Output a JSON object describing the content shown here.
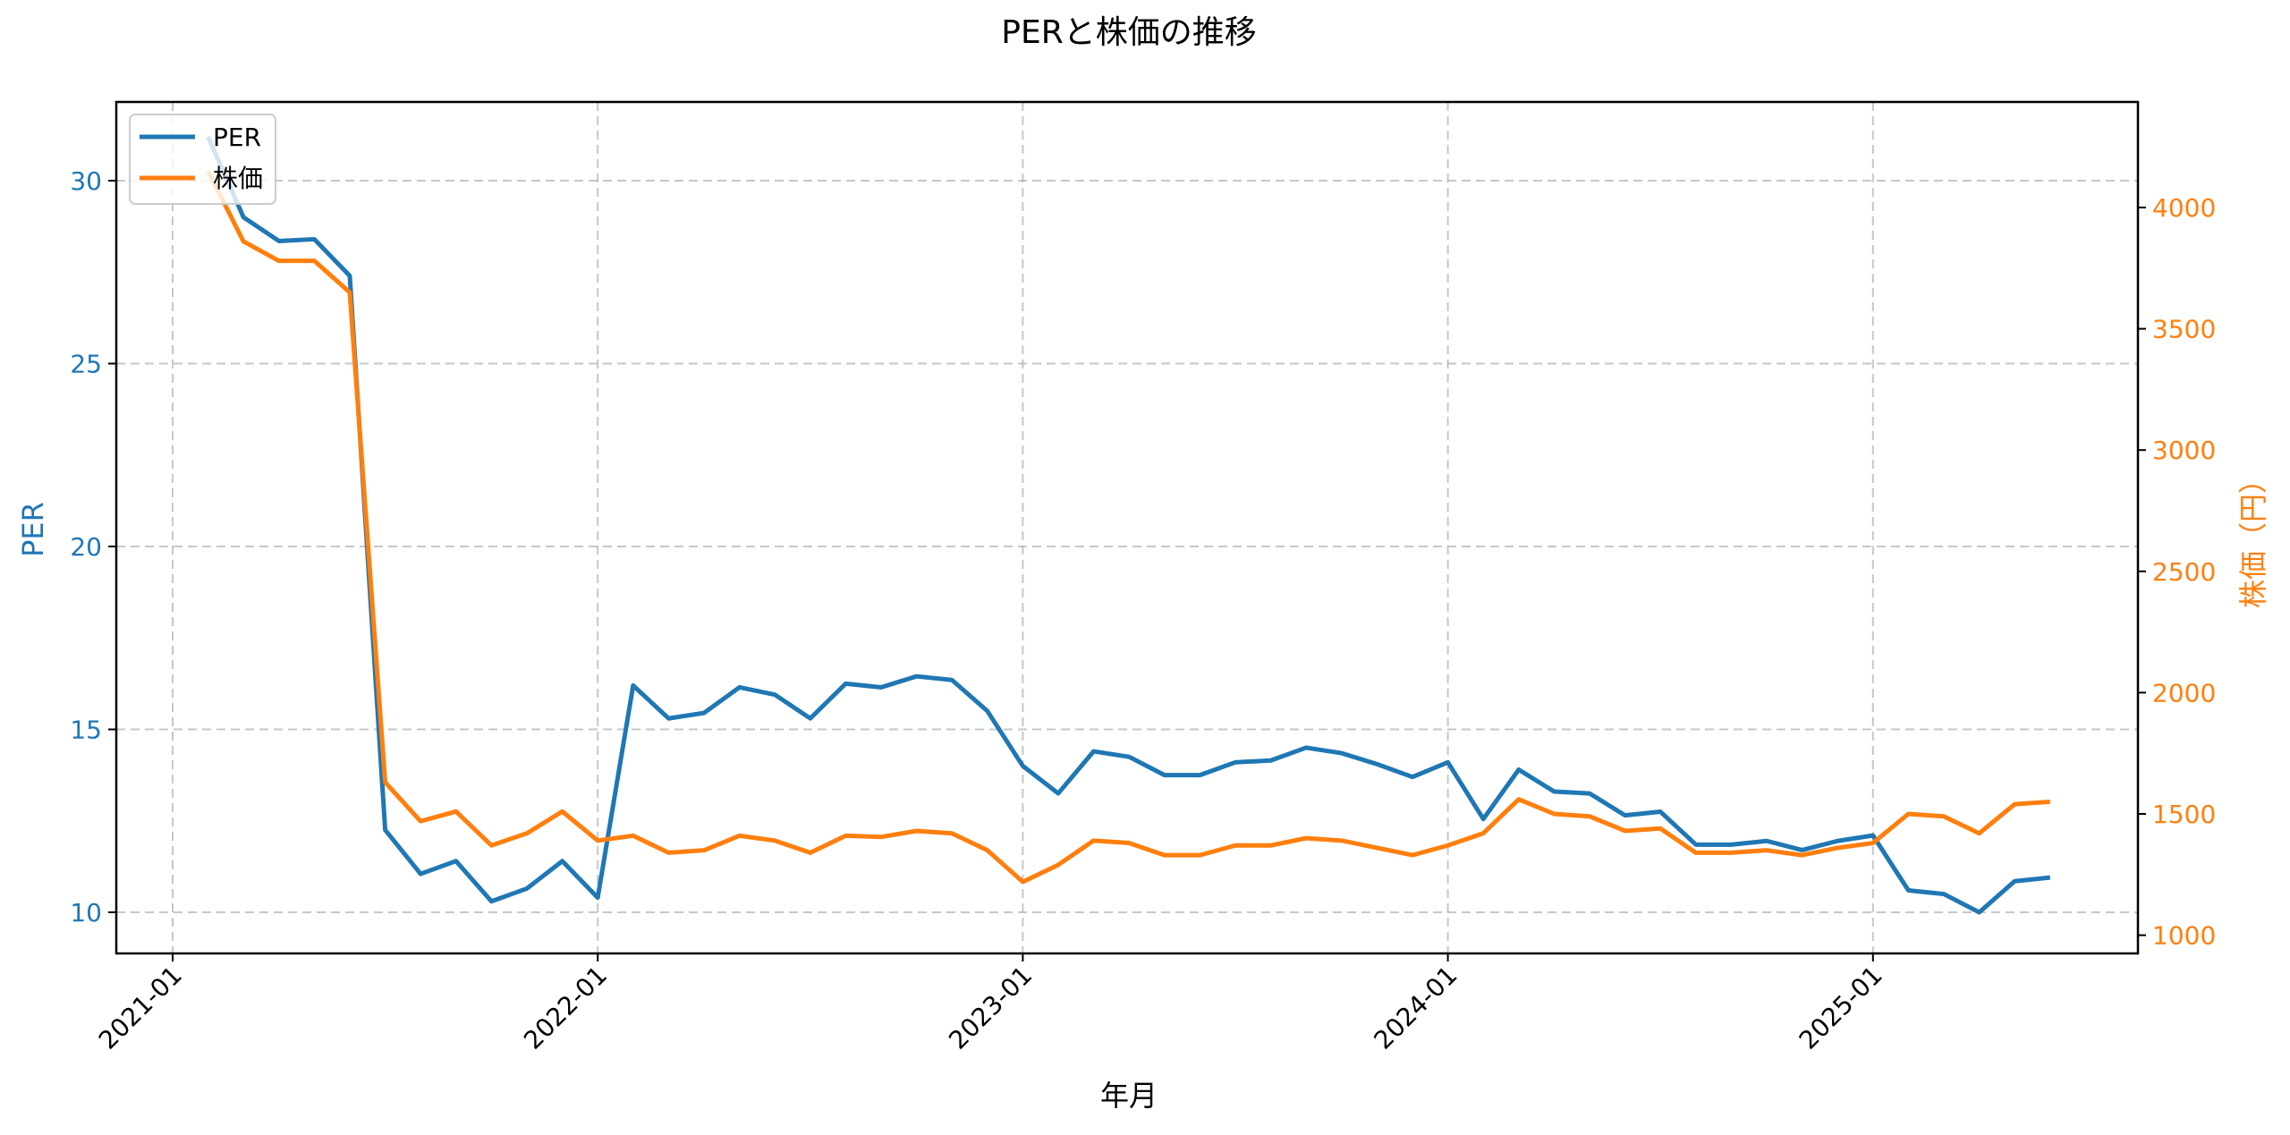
{
  "chart_data": {
    "type": "line",
    "title": "PERと株価の推移",
    "xlabel": "年月",
    "ylabel_left": "PER",
    "ylabel_right": "株価（円）",
    "ylim_left": [
      9.1,
      32.2
    ],
    "ylim_right": [
      950,
      4450
    ],
    "left_ticks": [
      10,
      15,
      20,
      25,
      30
    ],
    "right_ticks": [
      1000,
      1500,
      2000,
      2500,
      3000,
      3500,
      4000
    ],
    "x_ticks": [
      "2021-01",
      "2022-01",
      "2023-01",
      "2024-01",
      "2025-01"
    ],
    "grid": true,
    "legend_position": "upper left",
    "x": [
      "2021-02",
      "2021-03",
      "2021-04",
      "2021-05",
      "2021-06",
      "2021-07",
      "2021-08",
      "2021-09",
      "2021-10",
      "2021-11",
      "2021-12",
      "2022-01",
      "2022-02",
      "2022-03",
      "2022-04",
      "2022-05",
      "2022-06",
      "2022-07",
      "2022-08",
      "2022-09",
      "2022-10",
      "2022-11",
      "2022-12",
      "2023-01",
      "2023-02",
      "2023-03",
      "2023-04",
      "2023-05",
      "2023-06",
      "2023-07",
      "2023-08",
      "2023-09",
      "2023-10",
      "2023-11",
      "2023-12",
      "2024-01",
      "2024-02",
      "2024-03",
      "2024-04",
      "2024-05",
      "2024-06",
      "2024-07",
      "2024-08",
      "2024-09",
      "2024-10",
      "2024-11",
      "2024-12",
      "2025-01",
      "2025-02",
      "2025-03",
      "2025-04",
      "2025-05",
      "2025-06"
    ],
    "series": [
      {
        "name": "PER",
        "axis": "left",
        "color": "#1f77b4",
        "values": [
          31.2,
          29.0,
          28.35,
          28.4,
          27.4,
          12.25,
          11.05,
          11.4,
          10.3,
          10.65,
          11.4,
          10.4,
          16.2,
          15.3,
          15.45,
          16.15,
          15.95,
          15.3,
          16.25,
          16.15,
          16.45,
          16.35,
          15.5,
          14.0,
          13.25,
          14.4,
          14.25,
          13.75,
          13.75,
          14.1,
          14.15,
          14.5,
          14.35,
          14.05,
          13.7,
          14.1,
          12.55,
          13.9,
          13.3,
          13.25,
          12.65,
          12.75,
          11.85,
          11.85,
          11.95,
          11.7,
          11.95,
          12.1,
          10.6,
          10.5,
          10.0,
          10.85,
          10.95
        ]
      },
      {
        "name": "株価",
        "axis": "right",
        "color": "#ff7f0e",
        "values": [
          4150,
          3860,
          3780,
          3780,
          3650,
          1630,
          1470,
          1510,
          1370,
          1420,
          1510,
          1390,
          1410,
          1340,
          1350,
          1410,
          1390,
          1340,
          1410,
          1405,
          1430,
          1420,
          1350,
          1220,
          1290,
          1390,
          1380,
          1330,
          1330,
          1370,
          1370,
          1400,
          1390,
          1360,
          1330,
          1370,
          1420,
          1560,
          1500,
          1490,
          1430,
          1440,
          1340,
          1340,
          1350,
          1330,
          1360,
          1380,
          1500,
          1490,
          1420,
          1540,
          1550
        ]
      }
    ]
  },
  "legend": {
    "items": [
      {
        "label": "PER"
      },
      {
        "label": "株価"
      }
    ]
  }
}
